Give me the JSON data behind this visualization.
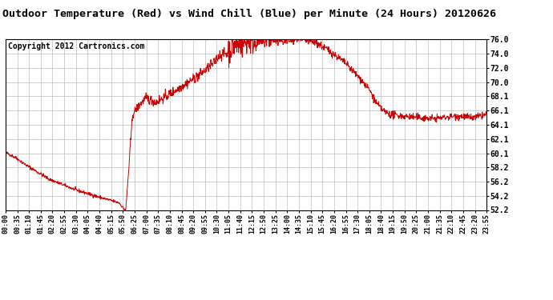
{
  "title": "Outdoor Temperature (Red) vs Wind Chill (Blue) per Minute (24 Hours) 20120626",
  "copyright_text": "Copyright 2012 Cartronics.com",
  "background_color": "#ffffff",
  "plot_bg_color": "#ffffff",
  "line_color": "#cc0000",
  "grid_color": "#bbbbbb",
  "title_fontsize": 9.5,
  "copyright_fontsize": 7,
  "ytick_labels": [
    "52.2",
    "54.2",
    "56.2",
    "58.2",
    "60.1",
    "62.1",
    "64.1",
    "66.1",
    "68.1",
    "70.0",
    "72.0",
    "74.0",
    "76.0"
  ],
  "ytick_values": [
    52.2,
    54.2,
    56.2,
    58.2,
    60.1,
    62.1,
    64.1,
    66.1,
    68.1,
    70.0,
    72.0,
    74.0,
    76.0
  ],
  "ylim": [
    52.2,
    76.0
  ],
  "xtick_labels": [
    "00:00",
    "00:35",
    "01:10",
    "01:45",
    "02:20",
    "02:55",
    "03:30",
    "04:05",
    "04:40",
    "05:15",
    "05:50",
    "06:25",
    "07:00",
    "07:35",
    "08:10",
    "08:45",
    "09:20",
    "09:55",
    "10:30",
    "11:05",
    "11:40",
    "12:15",
    "12:50",
    "13:25",
    "14:00",
    "14:35",
    "15:10",
    "15:45",
    "16:20",
    "16:55",
    "17:30",
    "18:05",
    "18:40",
    "19:15",
    "19:50",
    "20:25",
    "21:00",
    "21:35",
    "22:10",
    "22:45",
    "23:20",
    "23:55"
  ],
  "num_points": 1440,
  "linewidth": 0.7
}
